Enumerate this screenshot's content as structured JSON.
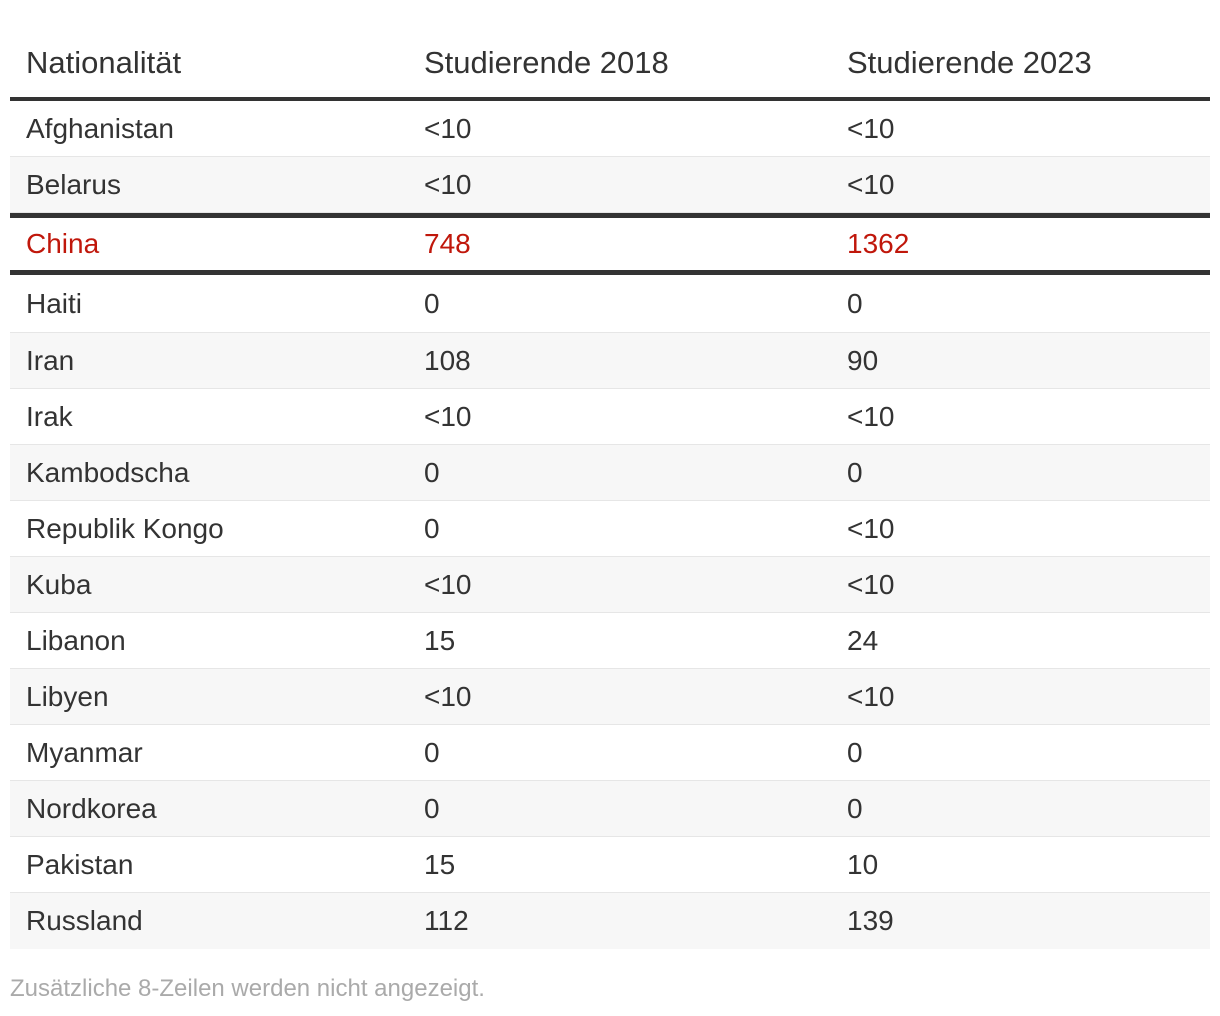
{
  "chart_data": {
    "type": "table",
    "columns": [
      "Nationalität",
      "Studierende 2018",
      "Studierende 2023"
    ],
    "rows": [
      {
        "nationality": "Afghanistan",
        "y2018": "<10",
        "y2023": "<10"
      },
      {
        "nationality": "Belarus",
        "y2018": "<10",
        "y2023": "<10"
      },
      {
        "nationality": "China",
        "y2018": "748",
        "y2023": "1362",
        "highlight": true
      },
      {
        "nationality": "Haiti",
        "y2018": "0",
        "y2023": "0"
      },
      {
        "nationality": "Iran",
        "y2018": "108",
        "y2023": "90"
      },
      {
        "nationality": "Irak",
        "y2018": "<10",
        "y2023": "<10"
      },
      {
        "nationality": "Kambodscha",
        "y2018": "0",
        "y2023": "0"
      },
      {
        "nationality": "Republik Kongo",
        "y2018": "0",
        "y2023": "<10"
      },
      {
        "nationality": "Kuba",
        "y2018": "<10",
        "y2023": "<10"
      },
      {
        "nationality": "Libanon",
        "y2018": "15",
        "y2023": "24"
      },
      {
        "nationality": "Libyen",
        "y2018": "<10",
        "y2023": "<10"
      },
      {
        "nationality": "Myanmar",
        "y2018": "0",
        "y2023": "0"
      },
      {
        "nationality": "Nordkorea",
        "y2018": "0",
        "y2023": "0"
      },
      {
        "nationality": "Pakistan",
        "y2018": "15",
        "y2023": "10"
      },
      {
        "nationality": "Russland",
        "y2018": "112",
        "y2023": "139"
      }
    ],
    "highlight_color": "#c0170b",
    "note": "Zusätzliche 8-Zeilen werden nicht angezeigt."
  }
}
